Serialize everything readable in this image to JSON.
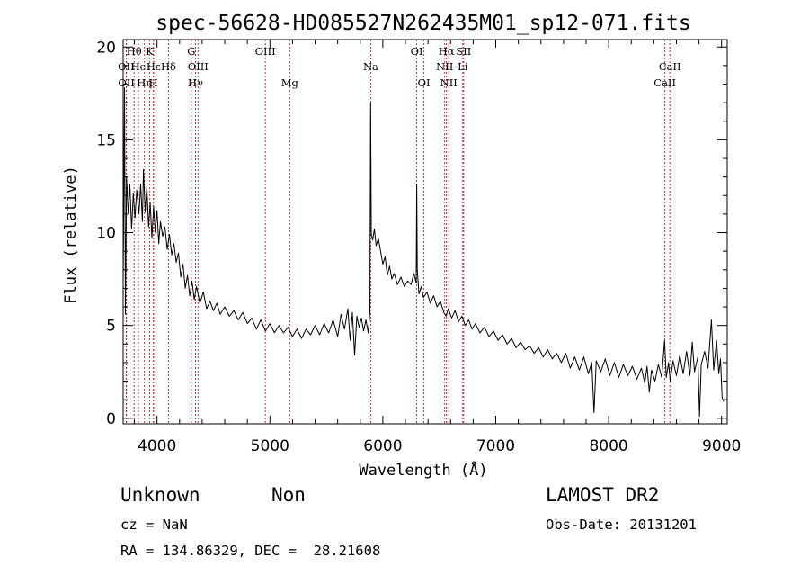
{
  "chart_data": {
    "type": "line",
    "title": "spec-56628-HD085527N262435M01_sp12-071.fits",
    "xlabel": "Wavelength (Å)",
    "ylabel": "Flux (relative)",
    "xlim": [
      3700,
      9050
    ],
    "ylim": [
      -0.3,
      20.4
    ],
    "x_ticks": [
      4000,
      5000,
      6000,
      7000,
      8000,
      9000
    ],
    "y_ticks": [
      0,
      5,
      10,
      15,
      20
    ],
    "grid": false,
    "line_color": "#000000",
    "marker_color": "#b22222",
    "series": [
      {
        "points": [
          [
            3700,
            7.2
          ],
          [
            3712,
            17.8
          ],
          [
            3720,
            5.6
          ],
          [
            3730,
            13.0
          ],
          [
            3745,
            11.0
          ],
          [
            3760,
            12.6
          ],
          [
            3775,
            10.2
          ],
          [
            3790,
            12.1
          ],
          [
            3805,
            10.8
          ],
          [
            3820,
            12.3
          ],
          [
            3840,
            11.0
          ],
          [
            3855,
            12.6
          ],
          [
            3870,
            10.6
          ],
          [
            3880,
            13.4
          ],
          [
            3895,
            11.1
          ],
          [
            3910,
            12.5
          ],
          [
            3925,
            10.3
          ],
          [
            3940,
            11.6
          ],
          [
            3955,
            9.7
          ],
          [
            3970,
            11.4
          ],
          [
            3985,
            10.0
          ],
          [
            4000,
            11.2
          ],
          [
            4015,
            9.4
          ],
          [
            4030,
            10.6
          ],
          [
            4050,
            9.8
          ],
          [
            4070,
            10.3
          ],
          [
            4090,
            9.1
          ],
          [
            4110,
            9.9
          ],
          [
            4130,
            8.8
          ],
          [
            4150,
            9.4
          ],
          [
            4170,
            8.4
          ],
          [
            4190,
            8.9
          ],
          [
            4210,
            7.6
          ],
          [
            4230,
            8.3
          ],
          [
            4250,
            7.0
          ],
          [
            4270,
            7.7
          ],
          [
            4290,
            6.6
          ],
          [
            4310,
            7.4
          ],
          [
            4330,
            6.4
          ],
          [
            4350,
            7.1
          ],
          [
            4380,
            6.2
          ],
          [
            4410,
            6.8
          ],
          [
            4440,
            5.9
          ],
          [
            4470,
            6.3
          ],
          [
            4500,
            5.8
          ],
          [
            4530,
            6.2
          ],
          [
            4560,
            5.6
          ],
          [
            4600,
            6.0
          ],
          [
            4640,
            5.5
          ],
          [
            4680,
            5.8
          ],
          [
            4720,
            5.3
          ],
          [
            4760,
            5.7
          ],
          [
            4800,
            5.1
          ],
          [
            4840,
            5.4
          ],
          [
            4880,
            4.8
          ],
          [
            4920,
            5.3
          ],
          [
            4960,
            4.7
          ],
          [
            5000,
            5.1
          ],
          [
            5040,
            4.6
          ],
          [
            5080,
            5.0
          ],
          [
            5120,
            4.6
          ],
          [
            5160,
            4.9
          ],
          [
            5200,
            4.4
          ],
          [
            5240,
            4.8
          ],
          [
            5280,
            4.3
          ],
          [
            5320,
            4.8
          ],
          [
            5360,
            4.5
          ],
          [
            5400,
            5.0
          ],
          [
            5440,
            4.5
          ],
          [
            5480,
            5.1
          ],
          [
            5520,
            4.6
          ],
          [
            5560,
            5.3
          ],
          [
            5600,
            4.4
          ],
          [
            5630,
            5.6
          ],
          [
            5660,
            4.8
          ],
          [
            5690,
            5.9
          ],
          [
            5710,
            4.2
          ],
          [
            5730,
            5.7
          ],
          [
            5750,
            3.4
          ],
          [
            5770,
            5.5
          ],
          [
            5790,
            4.9
          ],
          [
            5810,
            5.4
          ],
          [
            5830,
            4.7
          ],
          [
            5850,
            5.3
          ],
          [
            5870,
            4.6
          ],
          [
            5885,
            5.7
          ],
          [
            5892,
            17.0
          ],
          [
            5898,
            9.9
          ],
          [
            5910,
            9.6
          ],
          [
            5925,
            10.2
          ],
          [
            5940,
            9.3
          ],
          [
            5960,
            9.7
          ],
          [
            5980,
            9.0
          ],
          [
            6000,
            8.3
          ],
          [
            6020,
            8.7
          ],
          [
            6040,
            7.7
          ],
          [
            6060,
            8.2
          ],
          [
            6080,
            7.5
          ],
          [
            6100,
            7.8
          ],
          [
            6130,
            7.2
          ],
          [
            6160,
            7.6
          ],
          [
            6190,
            7.1
          ],
          [
            6220,
            7.4
          ],
          [
            6250,
            7.2
          ],
          [
            6275,
            7.8
          ],
          [
            6295,
            7.3
          ],
          [
            6300,
            12.6
          ],
          [
            6305,
            8.0
          ],
          [
            6320,
            6.7
          ],
          [
            6340,
            7.1
          ],
          [
            6360,
            6.5
          ],
          [
            6390,
            6.8
          ],
          [
            6420,
            6.2
          ],
          [
            6450,
            6.6
          ],
          [
            6480,
            6.0
          ],
          [
            6510,
            6.3
          ],
          [
            6540,
            5.7
          ],
          [
            6560,
            5.5
          ],
          [
            6580,
            5.9
          ],
          [
            6610,
            5.4
          ],
          [
            6640,
            5.8
          ],
          [
            6670,
            5.2
          ],
          [
            6700,
            5.5
          ],
          [
            6730,
            5.0
          ],
          [
            6760,
            5.3
          ],
          [
            6790,
            4.8
          ],
          [
            6820,
            5.1
          ],
          [
            6860,
            4.6
          ],
          [
            6900,
            4.9
          ],
          [
            6940,
            4.4
          ],
          [
            6980,
            4.7
          ],
          [
            7020,
            4.2
          ],
          [
            7060,
            4.5
          ],
          [
            7100,
            4.0
          ],
          [
            7140,
            4.3
          ],
          [
            7180,
            3.8
          ],
          [
            7220,
            4.1
          ],
          [
            7260,
            3.7
          ],
          [
            7300,
            3.9
          ],
          [
            7340,
            3.5
          ],
          [
            7380,
            3.8
          ],
          [
            7420,
            3.3
          ],
          [
            7460,
            3.7
          ],
          [
            7500,
            3.2
          ],
          [
            7540,
            3.5
          ],
          [
            7580,
            3.0
          ],
          [
            7620,
            3.5
          ],
          [
            7660,
            2.7
          ],
          [
            7700,
            3.3
          ],
          [
            7740,
            2.6
          ],
          [
            7780,
            3.3
          ],
          [
            7820,
            2.4
          ],
          [
            7850,
            3.0
          ],
          [
            7870,
            0.3
          ],
          [
            7890,
            3.1
          ],
          [
            7930,
            2.5
          ],
          [
            7970,
            3.2
          ],
          [
            8010,
            2.3
          ],
          [
            8050,
            3.0
          ],
          [
            8090,
            2.2
          ],
          [
            8130,
            2.9
          ],
          [
            8170,
            2.3
          ],
          [
            8210,
            2.8
          ],
          [
            8250,
            2.1
          ],
          [
            8290,
            2.7
          ],
          [
            8320,
            1.9
          ],
          [
            8340,
            2.8
          ],
          [
            8360,
            1.4
          ],
          [
            8380,
            2.6
          ],
          [
            8410,
            2.0
          ],
          [
            8440,
            2.9
          ],
          [
            8470,
            2.2
          ],
          [
            8495,
            4.2
          ],
          [
            8510,
            2.2
          ],
          [
            8530,
            3.0
          ],
          [
            8545,
            2.0
          ],
          [
            8570,
            3.1
          ],
          [
            8600,
            2.3
          ],
          [
            8630,
            3.4
          ],
          [
            8660,
            2.4
          ],
          [
            8690,
            3.6
          ],
          [
            8720,
            2.3
          ],
          [
            8740,
            4.1
          ],
          [
            8760,
            2.5
          ],
          [
            8790,
            3.3
          ],
          [
            8805,
            0.1
          ],
          [
            8820,
            2.9
          ],
          [
            8850,
            3.6
          ],
          [
            8880,
            2.7
          ],
          [
            8910,
            5.3
          ],
          [
            8930,
            2.6
          ],
          [
            8955,
            4.2
          ],
          [
            8975,
            2.4
          ],
          [
            8990,
            3.2
          ],
          [
            9005,
            1.1
          ],
          [
            9020,
            0.9
          ]
        ]
      }
    ],
    "line_markers": [
      {
        "label": "OII",
        "x": 3727,
        "row": 1
      },
      {
        "label": "Hθ",
        "x": 3797,
        "row": 0
      },
      {
        "label": "OII",
        "x": 3729,
        "row": 2
      },
      {
        "label": "He",
        "x": 3835,
        "row": 1
      },
      {
        "label": "Hη",
        "x": 3889,
        "row": 2
      },
      {
        "label": "K",
        "x": 3934,
        "row": 0
      },
      {
        "label": "Hε",
        "x": 3970,
        "row": 1
      },
      {
        "label": "H",
        "x": 3968,
        "row": 2
      },
      {
        "label": "Hδ",
        "x": 4102,
        "row": 1
      },
      {
        "label": "G",
        "x": 4304,
        "row": 0
      },
      {
        "label": "OIII",
        "x": 4363,
        "row": 1
      },
      {
        "label": "Hγ",
        "x": 4341,
        "row": 2
      },
      {
        "label": "OIII",
        "x": 4959,
        "row": 0
      },
      {
        "label": "Mg",
        "x": 5175,
        "row": 2
      },
      {
        "label": "Na",
        "x": 5893,
        "row": 1
      },
      {
        "label": "OI",
        "x": 6300,
        "row": 0
      },
      {
        "label": "OI",
        "x": 6364,
        "row": 2
      },
      {
        "label": "Hα",
        "x": 6563,
        "row": 0
      },
      {
        "label": "SII",
        "x": 6716,
        "row": 0
      },
      {
        "label": "NII",
        "x": 6548,
        "row": 1
      },
      {
        "label": "NII",
        "x": 6584,
        "row": 2
      },
      {
        "label": "Li",
        "x": 6708,
        "row": 1
      },
      {
        "label": "CaII",
        "x": 8542,
        "row": 1
      },
      {
        "label": "CaII",
        "x": 8498,
        "row": 2
      }
    ]
  },
  "info": {
    "class": "Unknown",
    "subclass": "Non",
    "cz": "cz = NaN",
    "radec": "RA = 134.86329, DEC =  28.21608",
    "survey": "LAMOST DR2",
    "obs_date": "Obs-Date: 20131201"
  }
}
